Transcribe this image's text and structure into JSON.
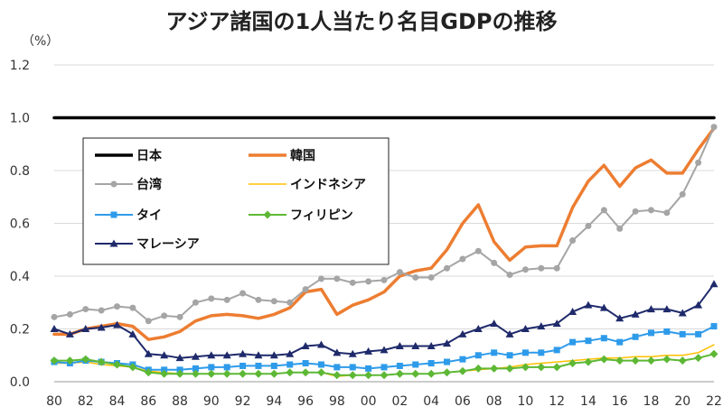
{
  "chart_data": {
    "type": "line",
    "title": "アジア諸国の1人当たり名目GDPの推移",
    "ylabel": "（%）",
    "xlabel": "",
    "ylim": [
      0,
      1.2
    ],
    "yticks": [
      0,
      0.2,
      0.4,
      0.6,
      0.8,
      1.0,
      1.2
    ],
    "ytick_labels": [
      "0.0",
      "0.2",
      "0.4",
      "0.6",
      "0.8",
      "1.0",
      "1.2"
    ],
    "x": [
      1980,
      1981,
      1982,
      1983,
      1984,
      1985,
      1986,
      1987,
      1988,
      1989,
      1990,
      1991,
      1992,
      1993,
      1994,
      1995,
      1996,
      1997,
      1998,
      1999,
      2000,
      2001,
      2002,
      2003,
      2004,
      2005,
      2006,
      2007,
      2008,
      2009,
      2010,
      2011,
      2012,
      2013,
      2014,
      2015,
      2016,
      2017,
      2018,
      2019,
      2020,
      2021,
      2022
    ],
    "xticks": [
      1980,
      1982,
      1984,
      1986,
      1988,
      1990,
      1992,
      1994,
      1996,
      1998,
      2000,
      2002,
      2004,
      2006,
      2008,
      2010,
      2012,
      2014,
      2016,
      2018,
      2020,
      2022
    ],
    "xtick_labels": [
      "80",
      "82",
      "84",
      "86",
      "88",
      "90",
      "92",
      "94",
      "96",
      "98",
      "00",
      "02",
      "04",
      "06",
      "08",
      "10",
      "12",
      "14",
      "16",
      "18",
      "20",
      "22"
    ],
    "grid": "horizontal",
    "legend_position": "upper-left",
    "series": [
      {
        "name": "日本",
        "color": "#000000",
        "marker": "none",
        "values": [
          1,
          1,
          1,
          1,
          1,
          1,
          1,
          1,
          1,
          1,
          1,
          1,
          1,
          1,
          1,
          1,
          1,
          1,
          1,
          1,
          1,
          1,
          1,
          1,
          1,
          1,
          1,
          1,
          1,
          1,
          1,
          1,
          1,
          1,
          1,
          1,
          1,
          1,
          1,
          1,
          1,
          1,
          1
        ]
      },
      {
        "name": "韓国",
        "color": "#ED7D31",
        "marker": "none",
        "values": [
          0.18,
          0.18,
          0.2,
          0.21,
          0.22,
          0.21,
          0.16,
          0.17,
          0.19,
          0.23,
          0.25,
          0.255,
          0.25,
          0.24,
          0.255,
          0.28,
          0.34,
          0.35,
          0.255,
          0.29,
          0.31,
          0.34,
          0.4,
          0.42,
          0.43,
          0.5,
          0.6,
          0.67,
          0.53,
          0.46,
          0.51,
          0.515,
          0.515,
          0.66,
          0.76,
          0.82,
          0.74,
          0.81,
          0.84,
          0.79,
          0.79,
          0.88,
          0.96
        ]
      },
      {
        "name": "台湾",
        "color": "#A5A5A5",
        "marker": "circle",
        "values": [
          0.245,
          0.255,
          0.275,
          0.27,
          0.285,
          0.28,
          0.23,
          0.25,
          0.245,
          0.3,
          0.315,
          0.31,
          0.335,
          0.31,
          0.305,
          0.3,
          0.35,
          0.39,
          0.39,
          0.375,
          0.38,
          0.385,
          0.415,
          0.395,
          0.395,
          0.43,
          0.465,
          0.495,
          0.45,
          0.405,
          0.425,
          0.43,
          0.43,
          0.535,
          0.59,
          0.65,
          0.58,
          0.645,
          0.65,
          0.64,
          0.71,
          0.83,
          0.965
        ]
      },
      {
        "name": "インドネシア",
        "color": "#FFC000",
        "marker": "none",
        "values": [
          0.07,
          0.07,
          0.075,
          0.065,
          0.06,
          0.055,
          0.04,
          0.035,
          0.03,
          0.03,
          0.03,
          0.03,
          0.03,
          0.03,
          0.03,
          0.035,
          0.035,
          0.035,
          0.02,
          0.025,
          0.025,
          0.025,
          0.03,
          0.03,
          0.03,
          0.035,
          0.04,
          0.045,
          0.05,
          0.055,
          0.065,
          0.07,
          0.075,
          0.08,
          0.085,
          0.09,
          0.09,
          0.095,
          0.095,
          0.1,
          0.1,
          0.11,
          0.14
        ]
      },
      {
        "name": "タイ",
        "color": "#2E9BEA",
        "marker": "square",
        "values": [
          0.075,
          0.07,
          0.08,
          0.075,
          0.07,
          0.065,
          0.045,
          0.045,
          0.045,
          0.05,
          0.055,
          0.055,
          0.06,
          0.06,
          0.06,
          0.065,
          0.07,
          0.065,
          0.055,
          0.055,
          0.05,
          0.055,
          0.06,
          0.065,
          0.07,
          0.075,
          0.085,
          0.1,
          0.11,
          0.1,
          0.11,
          0.11,
          0.12,
          0.15,
          0.155,
          0.165,
          0.15,
          0.17,
          0.185,
          0.19,
          0.18,
          0.18,
          0.21
        ]
      },
      {
        "name": "フィリピン",
        "color": "#5DB835",
        "marker": "diamond",
        "values": [
          0.08,
          0.08,
          0.085,
          0.075,
          0.065,
          0.055,
          0.035,
          0.03,
          0.03,
          0.03,
          0.03,
          0.03,
          0.03,
          0.03,
          0.03,
          0.035,
          0.035,
          0.035,
          0.025,
          0.025,
          0.025,
          0.025,
          0.03,
          0.03,
          0.03,
          0.035,
          0.04,
          0.05,
          0.05,
          0.05,
          0.055,
          0.055,
          0.055,
          0.07,
          0.075,
          0.085,
          0.08,
          0.08,
          0.08,
          0.085,
          0.08,
          0.09,
          0.105
        ]
      },
      {
        "name": "マレーシア",
        "color": "#1F2A6B",
        "marker": "triangle",
        "values": [
          0.2,
          0.18,
          0.2,
          0.205,
          0.215,
          0.18,
          0.105,
          0.1,
          0.09,
          0.095,
          0.1,
          0.1,
          0.105,
          0.1,
          0.1,
          0.105,
          0.135,
          0.14,
          0.11,
          0.105,
          0.115,
          0.12,
          0.135,
          0.135,
          0.135,
          0.145,
          0.18,
          0.2,
          0.22,
          0.18,
          0.2,
          0.21,
          0.22,
          0.265,
          0.29,
          0.28,
          0.24,
          0.255,
          0.275,
          0.275,
          0.26,
          0.29,
          0.37
        ]
      }
    ]
  }
}
